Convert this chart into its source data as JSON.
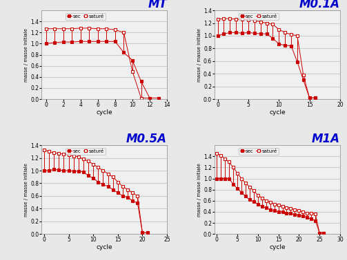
{
  "panels": [
    {
      "title": "MT",
      "xlim": [
        -0.5,
        14
      ],
      "ylim": [
        0,
        1.6
      ],
      "xticks": [
        0,
        2,
        4,
        6,
        8,
        10,
        12,
        14
      ],
      "yticks": [
        0,
        0.2,
        0.4,
        0.6,
        0.8,
        1.0,
        1.2,
        1.4
      ],
      "sec": [
        1.0,
        1.02,
        1.03,
        1.03,
        1.04,
        1.04,
        1.04,
        1.04,
        1.04,
        0.84,
        0.7,
        0.32,
        0.02,
        0.02
      ],
      "sat": [
        1.27,
        1.27,
        1.27,
        1.27,
        1.28,
        1.28,
        1.27,
        1.27,
        1.25,
        1.2,
        0.5,
        0.02,
        0.02,
        0.02
      ],
      "sec_x": [
        0,
        1,
        2,
        3,
        4,
        5,
        6,
        7,
        8,
        9,
        10,
        11,
        12,
        13
      ],
      "sat_x": [
        0,
        1,
        2,
        3,
        4,
        5,
        6,
        7,
        8,
        9,
        10,
        11,
        12,
        13
      ]
    },
    {
      "title": "M0.1A",
      "xlim": [
        -0.5,
        20
      ],
      "ylim": [
        0,
        1.4
      ],
      "xticks": [
        0,
        5,
        10,
        15,
        20
      ],
      "yticks": [
        0,
        0.2,
        0.4,
        0.6,
        0.8,
        1.0,
        1.2,
        1.4
      ],
      "sec": [
        1.0,
        1.03,
        1.05,
        1.05,
        1.04,
        1.05,
        1.04,
        1.03,
        1.03,
        0.96,
        0.87,
        0.85,
        0.84,
        0.59,
        0.3,
        0.02,
        0.02
      ],
      "sat": [
        1.26,
        1.27,
        1.27,
        1.26,
        1.26,
        1.25,
        1.24,
        1.22,
        1.2,
        1.18,
        1.1,
        1.05,
        1.02,
        1.0,
        0.38,
        0.02,
        0.02
      ],
      "sec_x": [
        0,
        1,
        2,
        3,
        4,
        5,
        6,
        7,
        8,
        9,
        10,
        11,
        12,
        13,
        14,
        15,
        16
      ],
      "sat_x": [
        0,
        1,
        2,
        3,
        4,
        5,
        6,
        7,
        8,
        9,
        10,
        11,
        12,
        13,
        14,
        15,
        16
      ]
    },
    {
      "title": "M0.5A",
      "xlim": [
        -0.5,
        25
      ],
      "ylim": [
        0,
        1.4
      ],
      "xticks": [
        0,
        5,
        10,
        15,
        20,
        25
      ],
      "yticks": [
        0,
        0.2,
        0.4,
        0.6,
        0.8,
        1.0,
        1.2,
        1.4
      ],
      "sec": [
        1.0,
        1.0,
        1.02,
        1.01,
        1.0,
        1.0,
        0.99,
        0.99,
        0.98,
        0.92,
        0.88,
        0.82,
        0.78,
        0.75,
        0.7,
        0.65,
        0.6,
        0.58,
        0.52,
        0.49,
        0.02,
        0.02
      ],
      "sat": [
        1.33,
        1.3,
        1.28,
        1.27,
        1.26,
        1.25,
        1.23,
        1.22,
        1.18,
        1.15,
        1.1,
        1.05,
        1.0,
        0.95,
        0.9,
        0.82,
        0.75,
        0.7,
        0.65,
        0.6,
        0.02,
        0.02
      ],
      "sec_x": [
        0,
        1,
        2,
        3,
        4,
        5,
        6,
        7,
        8,
        9,
        10,
        11,
        12,
        13,
        14,
        15,
        16,
        17,
        18,
        19,
        20,
        21
      ],
      "sat_x": [
        0,
        1,
        2,
        3,
        4,
        5,
        6,
        7,
        8,
        9,
        10,
        11,
        12,
        13,
        14,
        15,
        16,
        17,
        18,
        19,
        20,
        21
      ]
    },
    {
      "title": "M1A",
      "xlim": [
        -0.5,
        30
      ],
      "ylim": [
        0,
        1.6
      ],
      "xticks": [
        0,
        5,
        10,
        15,
        20,
        25,
        30
      ],
      "yticks": [
        0,
        0.2,
        0.4,
        0.6,
        0.8,
        1.0,
        1.2,
        1.4
      ],
      "sec": [
        1.0,
        1.0,
        1.0,
        1.0,
        0.9,
        0.82,
        0.75,
        0.68,
        0.62,
        0.58,
        0.54,
        0.5,
        0.47,
        0.44,
        0.42,
        0.4,
        0.4,
        0.38,
        0.37,
        0.35,
        0.34,
        0.32,
        0.3,
        0.27,
        0.24,
        0.02,
        0.02
      ],
      "sat": [
        1.45,
        1.42,
        1.35,
        1.3,
        1.2,
        1.1,
        1.0,
        0.92,
        0.85,
        0.78,
        0.7,
        0.65,
        0.6,
        0.57,
        0.54,
        0.52,
        0.5,
        0.48,
        0.46,
        0.44,
        0.42,
        0.4,
        0.38,
        0.37,
        0.36,
        0.02,
        0.02
      ],
      "sec_x": [
        0,
        1,
        2,
        3,
        4,
        5,
        6,
        7,
        8,
        9,
        10,
        11,
        12,
        13,
        14,
        15,
        16,
        17,
        18,
        19,
        20,
        21,
        22,
        23,
        24,
        25,
        26
      ],
      "sat_x": [
        0,
        1,
        2,
        3,
        4,
        5,
        6,
        7,
        8,
        9,
        10,
        11,
        12,
        13,
        14,
        15,
        16,
        17,
        18,
        19,
        20,
        21,
        22,
        23,
        24,
        25,
        26
      ]
    }
  ],
  "color_sec": "#cc0000",
  "color_sat": "#cc0000",
  "ylabel": "masse / masse initiale",
  "xlabel": "cycle",
  "legend_sec": "sec",
  "legend_sat": "saturé",
  "bg_color": "#f0f0f0",
  "plot_bg": "#f0f0f0",
  "title_color": "#0000cc",
  "grid_color": "#bbbbbb",
  "fig_bg": "#e8e8e8"
}
